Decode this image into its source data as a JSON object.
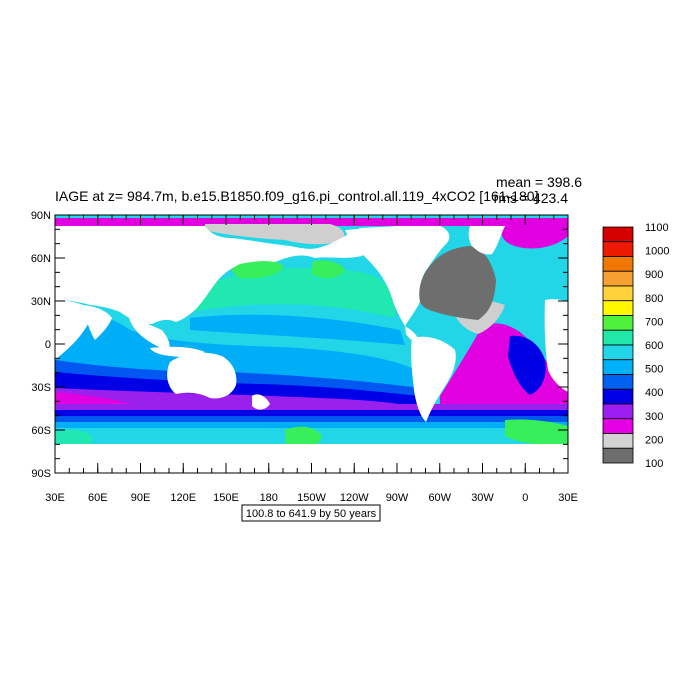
{
  "title": "IAGE at z= 984.7m, b.e15.B1850.f09_g16.pi_control.all.119_4xCO2 [161-180]",
  "stats": {
    "mean": "mean = 398.6",
    "rms": "rms = 423.4"
  },
  "range_box": "100.8 to 641.9 by 50 years",
  "lat_ticks": [
    "90N",
    "60N",
    "30N",
    "0",
    "30S",
    "60S",
    "90S"
  ],
  "lon_ticks": [
    "30E",
    "60E",
    "90E",
    "120E",
    "150E",
    "180",
    "150W",
    "120W",
    "90W",
    "60W",
    "30W",
    "0",
    "30E"
  ],
  "colorbar": {
    "labels": [
      "1100",
      "1000",
      "900",
      "800",
      "700",
      "600",
      "500",
      "400",
      "300",
      "200",
      "100"
    ],
    "colors": [
      "#d40000",
      "#ee1a00",
      "#f07800",
      "#f5a030",
      "#ffd23c",
      "#fff700",
      "#4ef23c",
      "#20e8a8",
      "#22d6e8",
      "#00b0f8",
      "#0060f0",
      "#0000e6",
      "#9c1ef0",
      "#e600e6",
      "#d3d3d3",
      "#6e6e6e"
    ]
  },
  "map_colors": {
    "land": "#ffffff",
    "ice_gray": "#cfcfcf",
    "dark_gray": "#6e6e6e",
    "magenta": "#e000e0",
    "purple": "#9a20ee",
    "blue": "#0000e6",
    "mid_blue": "#0058f0",
    "sky": "#00aef8",
    "cyan": "#22d6e8",
    "aqua": "#20e8b0",
    "green": "#38ee5a"
  }
}
